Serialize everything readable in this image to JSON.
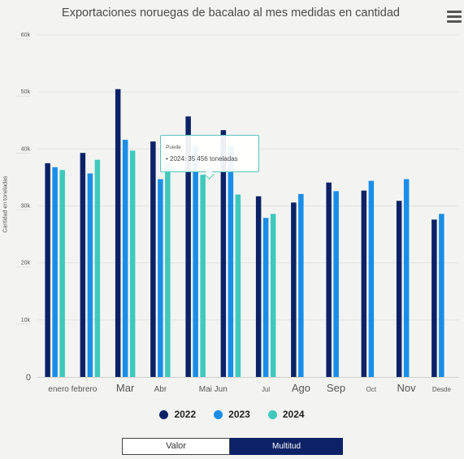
{
  "chart_data": {
    "type": "bar",
    "title": "Exportaciones noruegas de bacalao al mes medidas en cantidad",
    "ylabel": "Cantidad en toneladas",
    "xlabel": "",
    "ylim": [
      0,
      60000
    ],
    "y_ticks": [
      {
        "value": 0,
        "label": "0"
      },
      {
        "value": 10000,
        "label": "10k"
      },
      {
        "value": 20000,
        "label": "20k"
      },
      {
        "value": 30000,
        "label": "30k"
      },
      {
        "value": 40000,
        "label": "40k"
      },
      {
        "value": 50000,
        "label": "50k"
      },
      {
        "value": 60000,
        "label": "60k"
      }
    ],
    "categories": [
      "enero",
      "febrero",
      "Mar",
      "Abr",
      "Mai",
      "Jun",
      "Jul",
      "Ago",
      "Sep",
      "Oct",
      "Nov",
      "Desde"
    ],
    "x_tick_labels": [
      {
        "index": 0.5,
        "label": "enero febrero",
        "size": "small"
      },
      {
        "index": 2,
        "label": "Mar",
        "size": "large"
      },
      {
        "index": 3,
        "label": "Abr",
        "size": "small"
      },
      {
        "index": 4.5,
        "label": "Mai Jun",
        "size": "small"
      },
      {
        "index": 6,
        "label": "Jul",
        "size": "tiny"
      },
      {
        "index": 7,
        "label": "Ago",
        "size": "large"
      },
      {
        "index": 8,
        "label": "Sep",
        "size": "large"
      },
      {
        "index": 9,
        "label": "Oct",
        "size": "tiny"
      },
      {
        "index": 10,
        "label": "Nov",
        "size": "large"
      },
      {
        "index": 11,
        "label": "Desde",
        "size": "tiny"
      }
    ],
    "series": [
      {
        "name": "2022",
        "color": "#0d2266",
        "values": [
          37500,
          39300,
          50500,
          41300,
          45700,
          43300,
          31700,
          30600,
          34100,
          32700,
          30900,
          27600
        ]
      },
      {
        "name": "2023",
        "color": "#1a8de8",
        "values": [
          36800,
          35700,
          41600,
          34700,
          40500,
          40500,
          27900,
          32100,
          32600,
          34400,
          34700,
          28600
        ]
      },
      {
        "name": "2024",
        "color": "#3ec9bc",
        "values": [
          36300,
          38100,
          39700,
          37600,
          35456,
          32000,
          28600,
          null,
          null,
          null,
          null,
          null
        ]
      }
    ],
    "grid": true,
    "legend": "bottom-center",
    "tooltip": {
      "header": "Puede",
      "text": "• 2024: 35 456 toneladas",
      "series_index": 2,
      "category_index": 4
    }
  },
  "controls": {
    "valor_label": "Valor",
    "multitud_label": "Multitud",
    "active": "Multitud"
  },
  "icons": {
    "menu": "hamburger-menu-icon"
  }
}
